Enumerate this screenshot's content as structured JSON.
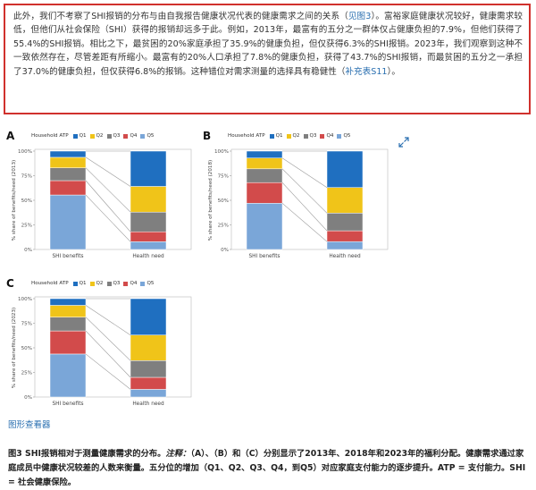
{
  "paragraph": {
    "part1": "此外，我们不考察了SHI报销的分布与由自我报告健康状况代表的健康需求之间的关系（",
    "link1": "见图3",
    "part2": "）。富裕家庭健康状况较好，健康需求较低，但他们从社会保险（SHI）获得的报销却远多于此。例如，2013年，最富有的五分之一群体仅占健康负担的7.9%，但他们获得了55.4%的SHI报销。相比之下，最贫困的20%家庭承担了35.9%的健康负担，但仅获得6.3%的SHI报销。2023年，我们观察到这种不一致依然存在，尽管差距有所缩小。最富有的20%人口承担了7.8%的健康负担，获得了43.7%的SHI报销，而最贫困的五分之一承担了37.0%的健康负担，但仅获得6.8%的报销。这种错位对需求测量的选择具有稳健性（",
    "link2": "补充表S11",
    "part3": "）。"
  },
  "legend": {
    "title": "Household ATP",
    "items": [
      "Q1",
      "Q2",
      "Q3",
      "Q4",
      "Q5"
    ]
  },
  "colors": {
    "Q1": "#1f6fc0",
    "Q2": "#f0c419",
    "Q3": "#7f7f7f",
    "Q4": "#d24b4b",
    "Q5": "#7aa6d8",
    "frame": "#d0312d",
    "link": "#2a6fb0"
  },
  "chart_data": [
    {
      "type": "bar",
      "stacked": true,
      "panel_label": "A",
      "ylabel": "% share of benefits/need (2013)",
      "categories": [
        "SHI benefits",
        "Health need"
      ],
      "yticks": [
        "0%",
        "25%",
        "50%",
        "75%",
        "100%"
      ],
      "ylim": [
        0,
        100
      ],
      "series": [
        {
          "name": "Q5",
          "values": [
            55.4,
            7.9
          ]
        },
        {
          "name": "Q4",
          "values": [
            14.6,
            10.1
          ]
        },
        {
          "name": "Q3",
          "values": [
            13.0,
            20.0
          ]
        },
        {
          "name": "Q2",
          "values": [
            10.7,
            26.1
          ]
        },
        {
          "name": "Q1",
          "values": [
            6.3,
            35.9
          ]
        }
      ]
    },
    {
      "type": "bar",
      "stacked": true,
      "panel_label": "B",
      "ylabel": "% share of benefits/need (2018)",
      "categories": [
        "SHI benefits",
        "Health need"
      ],
      "yticks": [
        "0%",
        "25%",
        "50%",
        "75%",
        "100%"
      ],
      "ylim": [
        0,
        100
      ],
      "series": [
        {
          "name": "Q5",
          "values": [
            47,
            8
          ]
        },
        {
          "name": "Q4",
          "values": [
            21,
            11
          ]
        },
        {
          "name": "Q3",
          "values": [
            14,
            18
          ]
        },
        {
          "name": "Q2",
          "values": [
            11,
            26
          ]
        },
        {
          "name": "Q1",
          "values": [
            7,
            37
          ]
        }
      ]
    },
    {
      "type": "bar",
      "stacked": true,
      "panel_label": "C",
      "ylabel": "% share of benefits/need (2023)",
      "categories": [
        "SHI benefits",
        "Health need"
      ],
      "yticks": [
        "0%",
        "25%",
        "50%",
        "75%",
        "100%"
      ],
      "ylim": [
        0,
        100
      ],
      "series": [
        {
          "name": "Q5",
          "values": [
            43.7,
            7.8
          ]
        },
        {
          "name": "Q4",
          "values": [
            23.5,
            12.2
          ]
        },
        {
          "name": "Q3",
          "values": [
            14.0,
            17.0
          ]
        },
        {
          "name": "Q2",
          "values": [
            12.0,
            26.0
          ]
        },
        {
          "name": "Q1",
          "values": [
            6.8,
            37.0
          ]
        }
      ]
    }
  ],
  "figure_viewer_link": "图形查看器",
  "caption": {
    "lead": "图3 SHI报销相对于测量健康需求的分布。",
    "note_label": "注释：",
    "text": "（A）、（B）和（C）分别显示了2013年、2018年和2023年的福利分配。健康需求通过家庭成员中健康状况较差的人数来衡量。五分位的增加（Q1、Q2、Q3、Q4，到Q5）对应家庭支付能力的逐步提升。ATP = 支付能力。SHI = 社会健康保险。"
  }
}
